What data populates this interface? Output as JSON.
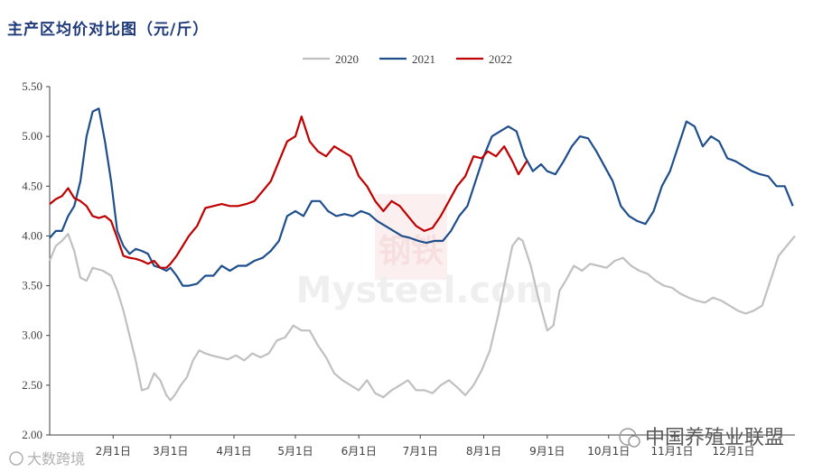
{
  "chart_data": {
    "type": "line",
    "title": "主产区均价对比图（元/斤）",
    "x_ticks": [
      "2月1日",
      "3月1日",
      "4月1日",
      "5月1日",
      "6月1日",
      "7月1日",
      "8月1日",
      "9月1日",
      "10月1日",
      "11月1日",
      "12月1日"
    ],
    "y_ticks": [
      "2.00",
      "2.50",
      "3.00",
      "3.50",
      "4.00",
      "4.50",
      "5.00",
      "5.50"
    ],
    "ylim": [
      2.0,
      5.5
    ],
    "x_domain": [
      "01-01",
      "12-31"
    ],
    "grid": false,
    "legend_position": "top-center",
    "series": [
      {
        "name": "2020",
        "color": "#c0c0c0",
        "points": [
          [
            "01-01",
            3.75
          ],
          [
            "01-04",
            3.9
          ],
          [
            "01-07",
            3.95
          ],
          [
            "01-10",
            4.02
          ],
          [
            "01-13",
            3.85
          ],
          [
            "01-16",
            3.58
          ],
          [
            "01-19",
            3.55
          ],
          [
            "01-22",
            3.68
          ],
          [
            "01-27",
            3.65
          ],
          [
            "01-31",
            3.6
          ],
          [
            "02-03",
            3.45
          ],
          [
            "02-06",
            3.25
          ],
          [
            "02-09",
            3.0
          ],
          [
            "02-12",
            2.75
          ],
          [
            "02-15",
            2.45
          ],
          [
            "02-18",
            2.47
          ],
          [
            "02-21",
            2.62
          ],
          [
            "02-24",
            2.55
          ],
          [
            "02-27",
            2.4
          ],
          [
            "02-29",
            2.35
          ],
          [
            "03-03",
            2.4
          ],
          [
            "03-06",
            2.5
          ],
          [
            "03-09",
            2.58
          ],
          [
            "03-12",
            2.75
          ],
          [
            "03-15",
            2.85
          ],
          [
            "03-18",
            2.82
          ],
          [
            "03-21",
            2.8
          ],
          [
            "03-25",
            2.78
          ],
          [
            "03-29",
            2.76
          ],
          [
            "04-02",
            2.8
          ],
          [
            "04-06",
            2.75
          ],
          [
            "04-10",
            2.82
          ],
          [
            "04-14",
            2.78
          ],
          [
            "04-18",
            2.82
          ],
          [
            "04-22",
            2.95
          ],
          [
            "04-26",
            2.98
          ],
          [
            "04-30",
            3.1
          ],
          [
            "05-04",
            3.05
          ],
          [
            "05-08",
            3.05
          ],
          [
            "05-12",
            2.9
          ],
          [
            "05-16",
            2.78
          ],
          [
            "05-20",
            2.62
          ],
          [
            "05-24",
            2.55
          ],
          [
            "05-28",
            2.5
          ],
          [
            "06-01",
            2.45
          ],
          [
            "06-05",
            2.55
          ],
          [
            "06-09",
            2.42
          ],
          [
            "06-13",
            2.38
          ],
          [
            "06-17",
            2.45
          ],
          [
            "06-21",
            2.5
          ],
          [
            "06-25",
            2.55
          ],
          [
            "06-29",
            2.45
          ],
          [
            "07-03",
            2.45
          ],
          [
            "07-07",
            2.42
          ],
          [
            "07-11",
            2.5
          ],
          [
            "07-15",
            2.55
          ],
          [
            "07-19",
            2.48
          ],
          [
            "07-23",
            2.4
          ],
          [
            "07-27",
            2.5
          ],
          [
            "07-31",
            2.65
          ],
          [
            "08-04",
            2.85
          ],
          [
            "08-08",
            3.2
          ],
          [
            "08-12",
            3.6
          ],
          [
            "08-15",
            3.9
          ],
          [
            "08-18",
            3.98
          ],
          [
            "08-20",
            3.95
          ],
          [
            "08-24",
            3.7
          ],
          [
            "08-28",
            3.35
          ],
          [
            "09-01",
            3.05
          ],
          [
            "09-04",
            3.1
          ],
          [
            "09-07",
            3.45
          ],
          [
            "09-10",
            3.55
          ],
          [
            "09-14",
            3.7
          ],
          [
            "09-18",
            3.65
          ],
          [
            "09-22",
            3.72
          ],
          [
            "09-26",
            3.7
          ],
          [
            "09-30",
            3.68
          ],
          [
            "10-04",
            3.75
          ],
          [
            "10-08",
            3.78
          ],
          [
            "10-12",
            3.7
          ],
          [
            "10-16",
            3.65
          ],
          [
            "10-20",
            3.62
          ],
          [
            "10-24",
            3.55
          ],
          [
            "10-28",
            3.5
          ],
          [
            "11-01",
            3.48
          ],
          [
            "11-05",
            3.42
          ],
          [
            "11-09",
            3.38
          ],
          [
            "11-13",
            3.35
          ],
          [
            "11-17",
            3.33
          ],
          [
            "11-21",
            3.38
          ],
          [
            "11-25",
            3.35
          ],
          [
            "11-29",
            3.3
          ],
          [
            "12-03",
            3.25
          ],
          [
            "12-07",
            3.22
          ],
          [
            "12-11",
            3.25
          ],
          [
            "12-15",
            3.3
          ],
          [
            "12-19",
            3.55
          ],
          [
            "12-23",
            3.8
          ],
          [
            "12-27",
            3.9
          ],
          [
            "12-31",
            4.0
          ]
        ]
      },
      {
        "name": "2021",
        "color": "#1f4e8c",
        "points": [
          [
            "01-01",
            3.98
          ],
          [
            "01-04",
            4.05
          ],
          [
            "01-07",
            4.05
          ],
          [
            "01-10",
            4.2
          ],
          [
            "01-13",
            4.3
          ],
          [
            "01-16",
            4.55
          ],
          [
            "01-19",
            5.0
          ],
          [
            "01-22",
            5.25
          ],
          [
            "01-25",
            5.28
          ],
          [
            "01-28",
            4.95
          ],
          [
            "01-31",
            4.55
          ],
          [
            "02-03",
            4.05
          ],
          [
            "02-06",
            3.9
          ],
          [
            "02-09",
            3.82
          ],
          [
            "02-12",
            3.87
          ],
          [
            "02-15",
            3.85
          ],
          [
            "02-18",
            3.82
          ],
          [
            "02-21",
            3.7
          ],
          [
            "02-24",
            3.68
          ],
          [
            "02-27",
            3.65
          ],
          [
            "03-01",
            3.68
          ],
          [
            "03-04",
            3.6
          ],
          [
            "03-07",
            3.5
          ],
          [
            "03-10",
            3.5
          ],
          [
            "03-14",
            3.52
          ],
          [
            "03-18",
            3.6
          ],
          [
            "03-22",
            3.6
          ],
          [
            "03-26",
            3.7
          ],
          [
            "03-30",
            3.65
          ],
          [
            "04-03",
            3.7
          ],
          [
            "04-07",
            3.7
          ],
          [
            "04-11",
            3.75
          ],
          [
            "04-15",
            3.78
          ],
          [
            "04-19",
            3.85
          ],
          [
            "04-23",
            3.95
          ],
          [
            "04-27",
            4.2
          ],
          [
            "05-01",
            4.25
          ],
          [
            "05-05",
            4.2
          ],
          [
            "05-09",
            4.35
          ],
          [
            "05-13",
            4.35
          ],
          [
            "05-17",
            4.25
          ],
          [
            "05-21",
            4.2
          ],
          [
            "05-25",
            4.22
          ],
          [
            "05-29",
            4.2
          ],
          [
            "06-02",
            4.25
          ],
          [
            "06-06",
            4.22
          ],
          [
            "06-10",
            4.15
          ],
          [
            "06-14",
            4.1
          ],
          [
            "06-18",
            4.05
          ],
          [
            "06-22",
            4.0
          ],
          [
            "06-26",
            3.98
          ],
          [
            "06-30",
            3.95
          ],
          [
            "07-04",
            3.93
          ],
          [
            "07-08",
            3.95
          ],
          [
            "07-12",
            3.95
          ],
          [
            "07-16",
            4.05
          ],
          [
            "07-20",
            4.2
          ],
          [
            "07-24",
            4.3
          ],
          [
            "07-28",
            4.55
          ],
          [
            "08-01",
            4.8
          ],
          [
            "08-05",
            5.0
          ],
          [
            "08-09",
            5.05
          ],
          [
            "08-13",
            5.1
          ],
          [
            "08-17",
            5.05
          ],
          [
            "08-21",
            4.8
          ],
          [
            "08-25",
            4.65
          ],
          [
            "08-29",
            4.72
          ],
          [
            "09-01",
            4.65
          ],
          [
            "09-05",
            4.62
          ],
          [
            "09-09",
            4.75
          ],
          [
            "09-13",
            4.9
          ],
          [
            "09-17",
            5.0
          ],
          [
            "09-21",
            4.98
          ],
          [
            "09-25",
            4.85
          ],
          [
            "09-29",
            4.7
          ],
          [
            "10-03",
            4.55
          ],
          [
            "10-07",
            4.3
          ],
          [
            "10-11",
            4.2
          ],
          [
            "10-15",
            4.15
          ],
          [
            "10-19",
            4.12
          ],
          [
            "10-23",
            4.25
          ],
          [
            "10-27",
            4.5
          ],
          [
            "10-31",
            4.65
          ],
          [
            "11-04",
            4.9
          ],
          [
            "11-08",
            5.15
          ],
          [
            "11-12",
            5.1
          ],
          [
            "11-16",
            4.9
          ],
          [
            "11-20",
            5.0
          ],
          [
            "11-24",
            4.95
          ],
          [
            "11-28",
            4.78
          ],
          [
            "12-02",
            4.75
          ],
          [
            "12-06",
            4.7
          ],
          [
            "12-10",
            4.65
          ],
          [
            "12-14",
            4.62
          ],
          [
            "12-18",
            4.6
          ],
          [
            "12-22",
            4.5
          ],
          [
            "12-26",
            4.5
          ],
          [
            "12-30",
            4.3
          ]
        ]
      },
      {
        "name": "2022",
        "color": "#c00000",
        "points": [
          [
            "01-01",
            4.32
          ],
          [
            "01-04",
            4.37
          ],
          [
            "01-07",
            4.4
          ],
          [
            "01-10",
            4.48
          ],
          [
            "01-13",
            4.38
          ],
          [
            "01-16",
            4.35
          ],
          [
            "01-19",
            4.3
          ],
          [
            "01-22",
            4.2
          ],
          [
            "01-25",
            4.18
          ],
          [
            "01-28",
            4.2
          ],
          [
            "01-31",
            4.15
          ],
          [
            "02-03",
            3.98
          ],
          [
            "02-06",
            3.8
          ],
          [
            "02-09",
            3.78
          ],
          [
            "02-12",
            3.77
          ],
          [
            "02-15",
            3.75
          ],
          [
            "02-18",
            3.72
          ],
          [
            "02-21",
            3.75
          ],
          [
            "02-24",
            3.68
          ],
          [
            "02-27",
            3.68
          ],
          [
            "03-01",
            3.72
          ],
          [
            "03-04",
            3.8
          ],
          [
            "03-07",
            3.9
          ],
          [
            "03-10",
            4.0
          ],
          [
            "03-14",
            4.1
          ],
          [
            "03-18",
            4.28
          ],
          [
            "03-22",
            4.3
          ],
          [
            "03-26",
            4.32
          ],
          [
            "03-30",
            4.3
          ],
          [
            "04-03",
            4.3
          ],
          [
            "04-07",
            4.32
          ],
          [
            "04-11",
            4.35
          ],
          [
            "04-15",
            4.45
          ],
          [
            "04-19",
            4.55
          ],
          [
            "04-23",
            4.75
          ],
          [
            "04-27",
            4.95
          ],
          [
            "05-01",
            5.0
          ],
          [
            "05-04",
            5.2
          ],
          [
            "05-08",
            4.95
          ],
          [
            "05-12",
            4.85
          ],
          [
            "05-16",
            4.8
          ],
          [
            "05-20",
            4.9
          ],
          [
            "05-24",
            4.85
          ],
          [
            "05-28",
            4.8
          ],
          [
            "06-01",
            4.6
          ],
          [
            "06-05",
            4.5
          ],
          [
            "06-09",
            4.35
          ],
          [
            "06-13",
            4.25
          ],
          [
            "06-17",
            4.35
          ],
          [
            "06-21",
            4.3
          ],
          [
            "06-25",
            4.2
          ],
          [
            "06-29",
            4.1
          ],
          [
            "07-03",
            4.05
          ],
          [
            "07-07",
            4.08
          ],
          [
            "07-11",
            4.2
          ],
          [
            "07-15",
            4.35
          ],
          [
            "07-19",
            4.5
          ],
          [
            "07-23",
            4.6
          ],
          [
            "07-27",
            4.8
          ],
          [
            "07-31",
            4.78
          ],
          [
            "08-03",
            4.85
          ],
          [
            "08-07",
            4.8
          ],
          [
            "08-11",
            4.9
          ],
          [
            "08-15",
            4.75
          ],
          [
            "08-18",
            4.62
          ],
          [
            "08-22",
            4.75
          ]
        ]
      }
    ]
  },
  "watermark": {
    "center_cn": "钢铁",
    "center_en": "Mysteel.com",
    "bottom_right": "中国养殖业联盟",
    "bottom_left": "大数跨境"
  }
}
